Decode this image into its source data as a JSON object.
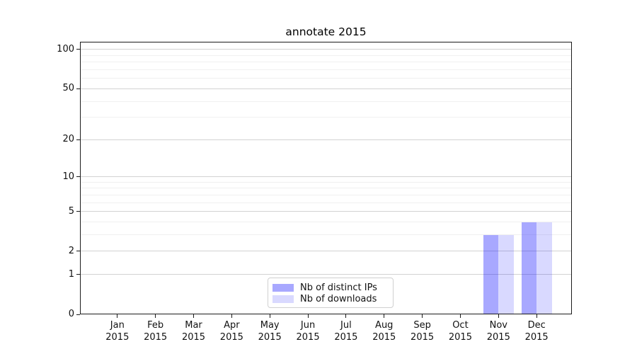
{
  "chart_data": {
    "type": "bar",
    "title": "annotate 2015",
    "categories": [
      "Jan",
      "Feb",
      "Mar",
      "Apr",
      "May",
      "Jun",
      "Jul",
      "Aug",
      "Sep",
      "Oct",
      "Nov",
      "Dec"
    ],
    "year_label": "2015",
    "series": [
      {
        "name": "Nb of distinct IPs",
        "color": "rgba(0,0,255,0.34)",
        "values": [
          0,
          0,
          0,
          0,
          0,
          0,
          0,
          0,
          0,
          0,
          3,
          4
        ]
      },
      {
        "name": "Nb of downloads",
        "color": "rgba(0,0,255,0.15)",
        "values": [
          0,
          0,
          0,
          0,
          0,
          0,
          0,
          0,
          0,
          0,
          3,
          4
        ]
      }
    ],
    "xlabel": "",
    "ylabel": "",
    "yscale": "log1p",
    "yticks": [
      0,
      1,
      2,
      5,
      10,
      20,
      50,
      100
    ],
    "minor_gridlines": [
      3,
      4,
      6,
      7,
      8,
      9,
      30,
      40,
      60,
      70,
      80,
      90
    ],
    "ylim": [
      0,
      106
    ],
    "grid": true,
    "legend_position": "lower center",
    "colors": {
      "major_grid": "#d2d2d2",
      "minor_grid": "#f0f0f0",
      "spine": "#1b1b1b"
    }
  }
}
